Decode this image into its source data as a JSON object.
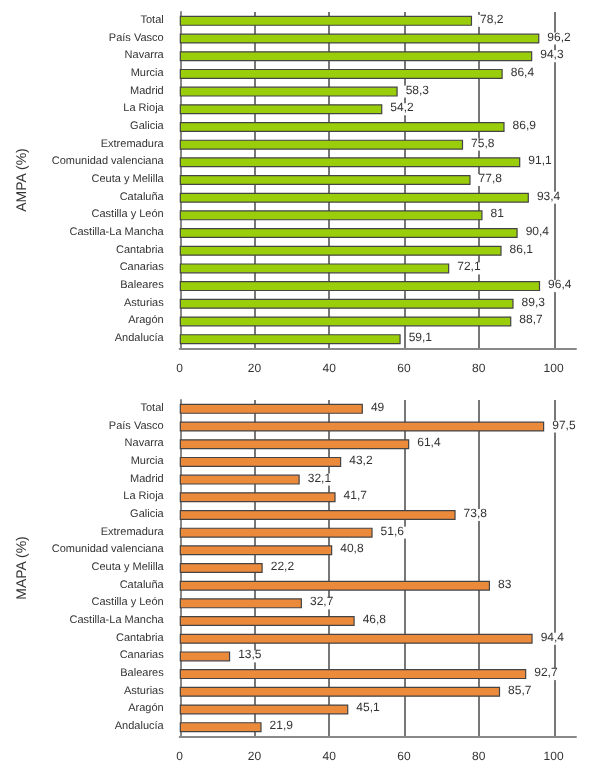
{
  "chart_data": [
    {
      "type": "bar",
      "orientation": "horizontal",
      "ylabel": "AMPA (%)",
      "categories": [
        "Total",
        "País Vasco",
        "Navarra",
        "Murcia",
        "Madrid",
        "La Rioja",
        "Galicia",
        "Extremadura",
        "Comunidad valenciana",
        "Ceuta y Melilla",
        "Cataluña",
        "Castilla y León",
        "Castilla-La Mancha",
        "Cantabria",
        "Canarias",
        "Baleares",
        "Asturias",
        "Aragón",
        "Andalucía"
      ],
      "values": [
        78.2,
        96.2,
        94.3,
        86.4,
        58.3,
        54.2,
        86.9,
        75.8,
        91.1,
        77.8,
        93.4,
        81,
        90.4,
        86.1,
        72.1,
        96.4,
        89.3,
        88.7,
        59.1
      ],
      "value_labels": [
        "78,2",
        "96,2",
        "94,3",
        "86,4",
        "58,3",
        "54,2",
        "86,9",
        "75,8",
        "91,1",
        "77,8",
        "93,4",
        "81",
        "90,4",
        "86,1",
        "72,1",
        "96,4",
        "89,3",
        "88,7",
        "59,1"
      ],
      "color": "#9acd0a",
      "xlim": [
        0,
        106
      ],
      "xticks": [
        0,
        20,
        40,
        60,
        80,
        100
      ],
      "grid": "x"
    },
    {
      "type": "bar",
      "orientation": "horizontal",
      "ylabel": "MAPA (%)",
      "categories": [
        "Total",
        "País Vasco",
        "Navarra",
        "Murcia",
        "Madrid",
        "La Rioja",
        "Galicia",
        "Extremadura",
        "Comunidad valenciana",
        "Ceuta y Melilla",
        "Cataluña",
        "Castilla y León",
        "Castilla-La Mancha",
        "Cantabria",
        "Canarias",
        "Baleares",
        "Asturias",
        "Aragón",
        "Andalucía"
      ],
      "values": [
        49,
        97.5,
        61.4,
        43.2,
        32.1,
        41.7,
        73.8,
        51.6,
        40.8,
        22.2,
        83,
        32.7,
        46.8,
        94.4,
        13.5,
        92.7,
        85.7,
        45.1,
        21.9
      ],
      "value_labels": [
        "49",
        "97,5",
        "61,4",
        "43,2",
        "32,1",
        "41,7",
        "73,8",
        "51,6",
        "40,8",
        "22,2",
        "83",
        "32,7",
        "46,8",
        "94,4",
        "13,5",
        "92,7",
        "85,7",
        "45,1",
        "21,9"
      ],
      "color": "#ec8a3c",
      "xlim": [
        0,
        106
      ],
      "xticks": [
        0,
        20,
        40,
        60,
        80,
        100
      ],
      "grid": "x"
    }
  ]
}
